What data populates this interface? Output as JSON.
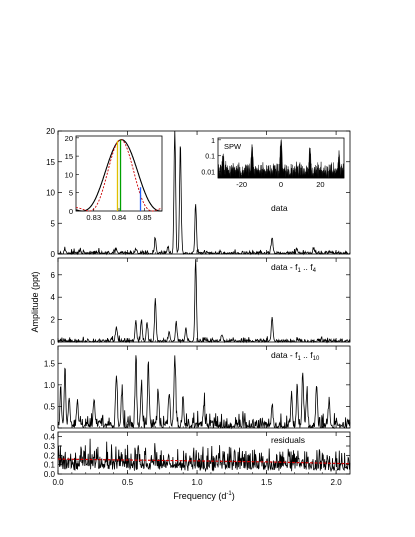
{
  "chart_data": [
    {
      "id": "p1",
      "type": "line",
      "label": "data",
      "ylim": [
        0,
        20
      ],
      "yticks": [
        0,
        5,
        10,
        15,
        20
      ],
      "peaks": [
        [
          0.05,
          0.6
        ],
        [
          0.16,
          0.4
        ],
        [
          0.42,
          0.6
        ],
        [
          0.56,
          0.7
        ],
        [
          0.7,
          2.5
        ],
        [
          0.79,
          1.0
        ],
        [
          0.84,
          19.8
        ],
        [
          0.88,
          18.0
        ],
        [
          0.99,
          8.0
        ],
        [
          1.54,
          2.5
        ],
        [
          1.72,
          0.6
        ],
        [
          1.84,
          0.6
        ]
      ],
      "noise": 0.7
    },
    {
      "id": "p2",
      "type": "line",
      "label_main": "data - f",
      "label_sub1": "1",
      "label_mid": " .. f",
      "label_sub2": "4",
      "ylim": [
        0,
        7.5
      ],
      "yticks": [
        0,
        2,
        4,
        6
      ],
      "peaks": [
        [
          0.42,
          1.3
        ],
        [
          0.56,
          1.8
        ],
        [
          0.6,
          1.9
        ],
        [
          0.64,
          1.7
        ],
        [
          0.7,
          3.8
        ],
        [
          0.8,
          0.9
        ],
        [
          0.85,
          1.8
        ],
        [
          0.92,
          1.2
        ],
        [
          0.99,
          7.3
        ],
        [
          1.54,
          2.2
        ],
        [
          1.18,
          0.6
        ]
      ],
      "noise": 0.45
    },
    {
      "id": "p3",
      "type": "line",
      "label_main": "data - f",
      "label_sub1": "1",
      "label_mid": " .. f",
      "label_sub2": "10",
      "ylim": [
        0,
        1.9
      ],
      "yticks": [
        0,
        0.5,
        1.0,
        1.5
      ],
      "ytick_labels": [
        "0",
        "0.5",
        "1.0",
        "1.5"
      ],
      "peaks": [
        [
          0.02,
          0.75
        ],
        [
          0.05,
          1.25
        ],
        [
          0.08,
          0.7
        ],
        [
          0.14,
          0.6
        ],
        [
          0.26,
          0.65
        ],
        [
          0.42,
          1.2
        ],
        [
          0.46,
          0.8
        ],
        [
          0.56,
          1.6
        ],
        [
          0.6,
          0.9
        ],
        [
          0.65,
          1.3
        ],
        [
          0.72,
          0.7
        ],
        [
          0.84,
          1.65
        ],
        [
          0.8,
          0.8
        ],
        [
          0.9,
          0.6
        ],
        [
          1.05,
          0.5
        ],
        [
          1.68,
          0.7
        ],
        [
          1.72,
          0.9
        ],
        [
          1.76,
          1.2
        ],
        [
          1.79,
          0.8
        ],
        [
          1.86,
          1.0
        ],
        [
          1.95,
          0.55
        ],
        [
          1.54,
          0.5
        ]
      ],
      "noise": 0.35
    },
    {
      "id": "p4",
      "type": "line",
      "label": "residuals",
      "ylim": [
        0,
        0.45
      ],
      "yticks": [
        0,
        0.1,
        0.2,
        0.3,
        0.4
      ],
      "ytick_labels": [
        "0.0",
        "0.1",
        "0.2",
        "0.3",
        "0.4"
      ],
      "noise_level": [
        [
          0.0,
          0.16
        ],
        [
          0.5,
          0.15
        ],
        [
          1.0,
          0.14
        ],
        [
          1.5,
          0.13
        ],
        [
          2.1,
          0.11
        ]
      ],
      "noise": 0.33
    }
  ],
  "inset_zoom": {
    "xlim": [
      0.823,
      0.857
    ],
    "ylim": [
      0,
      20.5
    ],
    "xticks": [
      0.83,
      0.84,
      0.85
    ],
    "yticks": [
      0,
      5,
      10,
      15,
      20
    ],
    "peak_center": 0.841,
    "peak_height": 19.5,
    "green_line_x": 0.8406,
    "yellow_line_x": 0.8394,
    "blue_line_x": 0.8485,
    "colors": {
      "model": "#cc0000",
      "green": "#00a000",
      "yellow": "#e0c000",
      "blue": "#2060ff"
    }
  },
  "inset_spw": {
    "label": "SPW",
    "xlim": [
      -32,
      32
    ],
    "xticks": [
      -20,
      0,
      20
    ],
    "yticks": [
      0.01,
      0.1,
      1
    ],
    "ytick_labels": [
      "0.01",
      "0.1",
      "1"
    ]
  },
  "axes": {
    "xlim": [
      0,
      2.1
    ],
    "xticks": [
      0.0,
      0.5,
      1.0,
      1.5,
      2.0
    ],
    "xtick_labels": [
      "0.0",
      "0.5",
      "1.0",
      "1.5",
      "2.0"
    ],
    "xlabel_main": "Frequency (d",
    "xlabel_sup": "-1",
    "xlabel_end": ")",
    "ylabel": "Amplitude (ppt)",
    "residual_fit_color": "#cc0000"
  }
}
